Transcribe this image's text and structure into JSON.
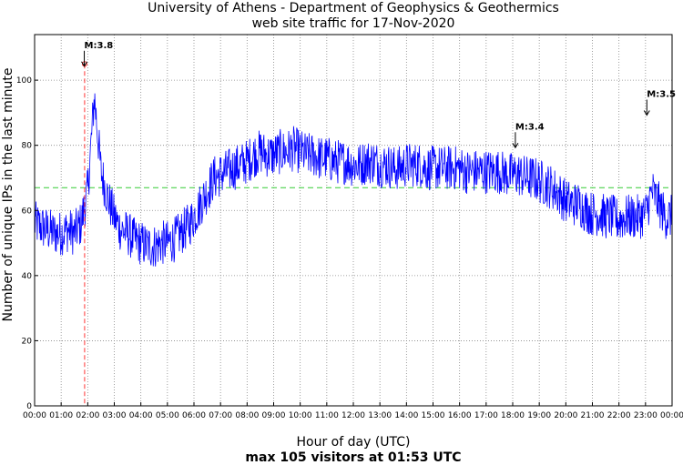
{
  "chart_data": {
    "type": "line",
    "title": [
      "University of Athens - Department of Geophysics & Geothermics",
      "web site traffic for 17-Nov-2020"
    ],
    "xlabel": "Hour of day (UTC)",
    "ylabel": "Number of unique IPs in the last minute",
    "footer": "max 105 visitors at 01:53 UTC",
    "xlim": [
      0,
      24
    ],
    "ylim": [
      0,
      114
    ],
    "x_tick_labels": [
      "00:00",
      "01:00",
      "02:00",
      "03:00",
      "04:00",
      "05:00",
      "06:00",
      "07:00",
      "08:00",
      "09:00",
      "10:00",
      "11:00",
      "12:00",
      "13:00",
      "14:00",
      "15:00",
      "16:00",
      "17:00",
      "18:00",
      "19:00",
      "20:00",
      "21:00",
      "22:00",
      "23:00",
      "00:00"
    ],
    "y_ticks": [
      0,
      20,
      40,
      60,
      80,
      100
    ],
    "grid": true,
    "average_line": 67,
    "max_marker": {
      "x": 1.883,
      "y": 105
    },
    "series": [
      {
        "color": "#0000ff",
        "x_start": 0,
        "x_step": 0.25,
        "values": [
          56,
          55,
          54,
          53,
          53,
          54,
          53,
          56,
          66,
          95,
          72,
          64,
          58,
          54,
          53,
          51,
          50,
          49,
          49,
          50,
          50,
          51,
          53,
          55,
          58,
          62,
          66,
          70,
          71,
          72,
          73,
          74,
          75,
          77,
          78,
          77,
          77,
          78,
          78,
          79,
          78,
          77,
          77,
          76,
          76,
          75,
          75,
          75,
          74,
          74,
          75,
          75,
          74,
          74,
          73,
          73,
          74,
          74,
          74,
          73,
          73,
          73,
          73,
          73,
          73,
          72,
          72,
          72,
          72,
          72,
          72,
          71,
          71,
          71,
          70,
          70,
          69,
          68,
          67,
          65,
          63,
          62,
          62,
          60,
          59,
          59,
          58,
          58,
          57,
          58,
          58,
          58,
          59,
          66,
          62,
          58,
          58
        ]
      }
    ],
    "annotations": [
      {
        "label": "M:3.8",
        "x": 1.87,
        "y": 104
      },
      {
        "label": "M:3.4",
        "x": 18.1,
        "y": 79
      },
      {
        "label": "M:3.5",
        "x": 23.05,
        "y": 89
      }
    ]
  }
}
